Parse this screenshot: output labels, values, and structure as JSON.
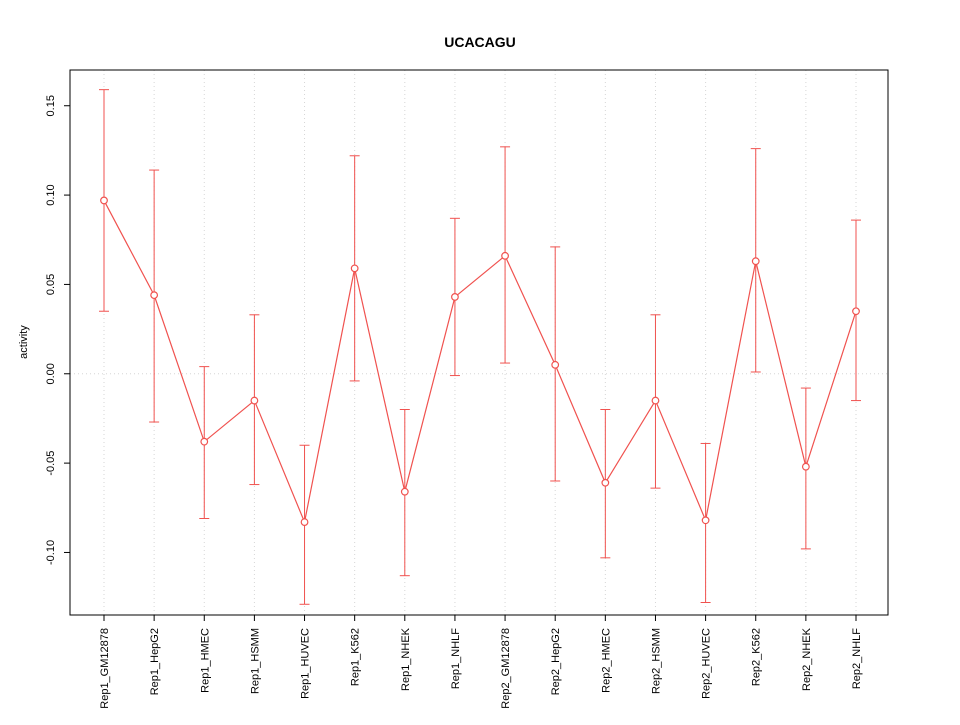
{
  "title": "UCACAGU",
  "chart_data": {
    "type": "line",
    "title": "UCACAGU",
    "xlabel": "",
    "ylabel": "activity",
    "categories": [
      "Rep1_GM12878",
      "Rep1_HepG2",
      "Rep1_HMEC",
      "Rep1_HSMM",
      "Rep1_HUVEC",
      "Rep1_K562",
      "Rep1_NHEK",
      "Rep1_NHLF",
      "Rep2_GM12878",
      "Rep2_HepG2",
      "Rep2_HMEC",
      "Rep2_HSMM",
      "Rep2_HUVEC",
      "Rep2_K562",
      "Rep2_NHEK",
      "Rep2_NHLF"
    ],
    "values": [
      0.097,
      0.044,
      -0.038,
      -0.015,
      -0.083,
      0.059,
      -0.066,
      0.043,
      0.066,
      0.005,
      -0.061,
      -0.015,
      -0.082,
      0.063,
      -0.052,
      0.035
    ],
    "error_high": [
      0.159,
      0.114,
      0.004,
      0.033,
      -0.04,
      0.122,
      -0.02,
      0.087,
      0.127,
      0.071,
      -0.02,
      0.033,
      -0.039,
      0.126,
      -0.008,
      0.086
    ],
    "error_low": [
      0.035,
      -0.027,
      -0.081,
      -0.062,
      -0.129,
      -0.004,
      -0.113,
      -0.001,
      0.006,
      -0.06,
      -0.103,
      -0.064,
      -0.128,
      0.001,
      -0.098,
      -0.015
    ],
    "yticks": [
      0.15,
      0.1,
      0.05,
      0.0,
      -0.05,
      -0.1
    ],
    "ylim": [
      -0.135,
      0.17
    ],
    "grid": "dotted vertical lines at each category and dotted line at y=0",
    "legend": "none",
    "series_color": "#f0524f",
    "grid_color": "#d6d6d6",
    "axis_color": "#000000",
    "marker": "open-circle"
  }
}
